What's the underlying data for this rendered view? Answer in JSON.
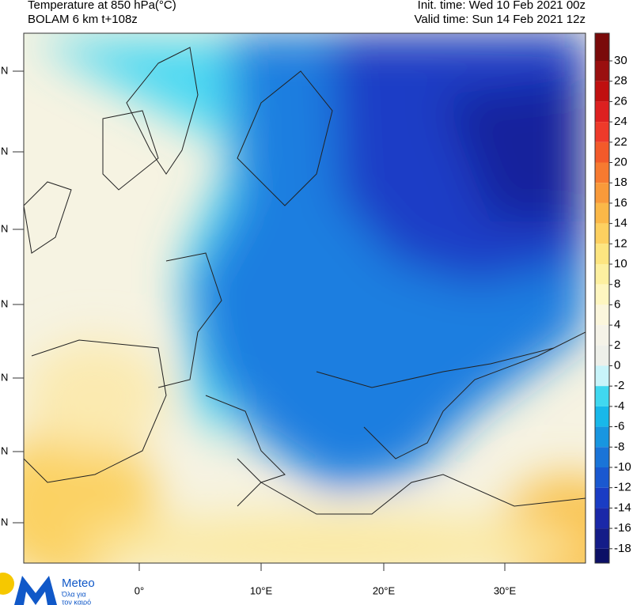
{
  "header": {
    "title": "Temperature at 850 hPa(°C)",
    "model": "BOLAM 6 km t+108z",
    "init_time": "Init. time: Wed 10 Feb 2021 00z",
    "valid_time": "Valid time: Sun 14 Feb 2021 12z"
  },
  "colorbar": {
    "labels": [
      "30",
      "28",
      "26",
      "24",
      "22",
      "20",
      "18",
      "16",
      "14",
      "12",
      "10",
      "8",
      "6",
      "4",
      "2",
      "0",
      "-2",
      "-4",
      "-6",
      "-8",
      "-10",
      "-12",
      "-14",
      "-16",
      "-18"
    ],
    "colors": [
      "#7a0a0a",
      "#9a0f0f",
      "#c01010",
      "#dd2020",
      "#ee3a2a",
      "#f35a2a",
      "#f77a30",
      "#f99a3a",
      "#fbb848",
      "#fdd060",
      "#fde580",
      "#fdf0a0",
      "#fef6c0",
      "#fbf6dc",
      "#f5f3e8",
      "#eef0ea",
      "#c8f4fa",
      "#40d8f0",
      "#18b8ea",
      "#1896e0",
      "#1a74d8",
      "#1a58d0",
      "#1a3cc4",
      "#1a28a8",
      "#141c88",
      "#0c1066"
    ]
  },
  "longitudes": [
    "0°",
    "10°E",
    "20°E",
    "30°E"
  ],
  "latitudes": [
    "N",
    "N",
    "N",
    "N",
    "N",
    "N",
    "N"
  ],
  "logo": {
    "name": "Meteo",
    "tagline_1": "Όλα για",
    "tagline_2": "τον καιρό"
  }
}
